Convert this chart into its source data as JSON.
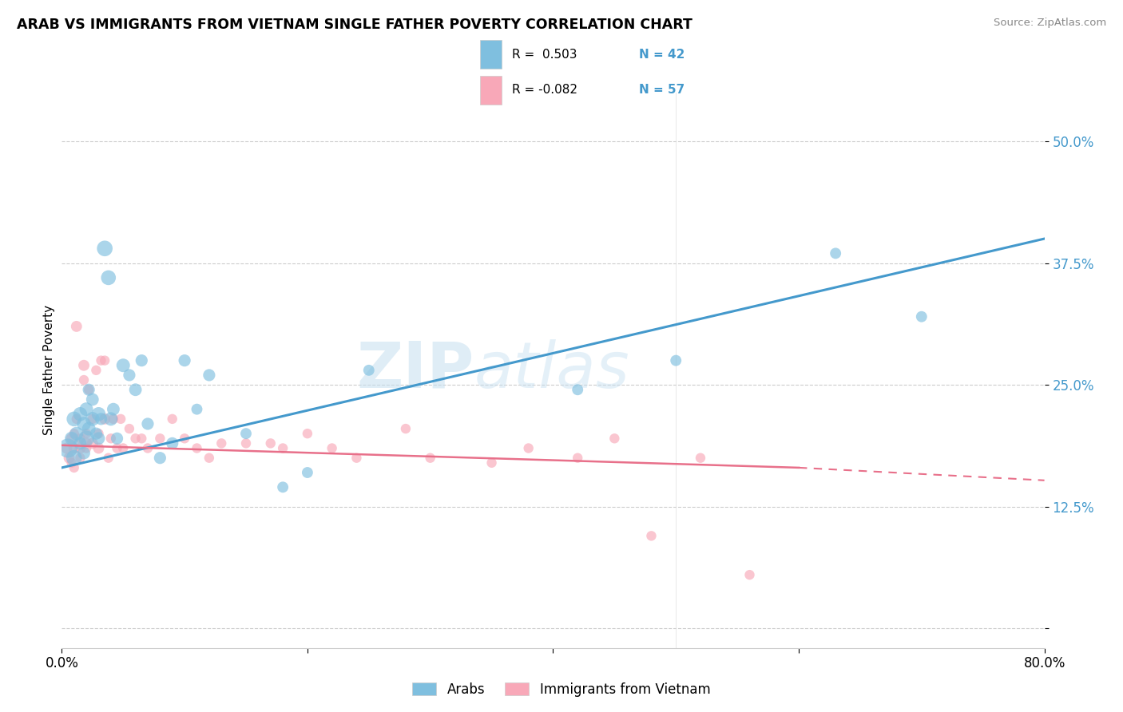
{
  "title": "ARAB VS IMMIGRANTS FROM VIETNAM SINGLE FATHER POVERTY CORRELATION CHART",
  "source": "Source: ZipAtlas.com",
  "ylabel": "Single Father Poverty",
  "yticks": [
    0.0,
    0.125,
    0.25,
    0.375,
    0.5
  ],
  "ytick_labels": [
    "",
    "12.5%",
    "25.0%",
    "37.5%",
    "50.0%"
  ],
  "xlim": [
    0.0,
    0.8
  ],
  "ylim": [
    -0.02,
    0.55
  ],
  "blue_color": "#7fbfdf",
  "pink_color": "#f8a8b8",
  "blue_line_color": "#4499cc",
  "pink_line_color": "#e8708a",
  "blue_fill": "#aacce8",
  "pink_fill": "#f4b8c8",
  "watermark_zip": "ZIP",
  "watermark_atlas": "atlas",
  "arab_x": [
    0.005,
    0.008,
    0.01,
    0.01,
    0.012,
    0.015,
    0.015,
    0.018,
    0.018,
    0.02,
    0.02,
    0.022,
    0.022,
    0.025,
    0.025,
    0.028,
    0.03,
    0.03,
    0.032,
    0.035,
    0.038,
    0.04,
    0.042,
    0.045,
    0.05,
    0.055,
    0.06,
    0.065,
    0.07,
    0.08,
    0.09,
    0.1,
    0.11,
    0.12,
    0.15,
    0.18,
    0.2,
    0.25,
    0.42,
    0.5,
    0.63,
    0.7
  ],
  "arab_y": [
    0.185,
    0.195,
    0.175,
    0.215,
    0.2,
    0.22,
    0.19,
    0.21,
    0.18,
    0.195,
    0.225,
    0.205,
    0.245,
    0.215,
    0.235,
    0.2,
    0.22,
    0.195,
    0.215,
    0.39,
    0.36,
    0.215,
    0.225,
    0.195,
    0.27,
    0.26,
    0.245,
    0.275,
    0.21,
    0.175,
    0.19,
    0.275,
    0.225,
    0.26,
    0.2,
    0.145,
    0.16,
    0.265,
    0.245,
    0.275,
    0.385,
    0.32
  ],
  "arab_sizes": [
    300,
    150,
    200,
    180,
    150,
    160,
    130,
    160,
    130,
    200,
    150,
    150,
    120,
    160,
    130,
    120,
    160,
    130,
    120,
    200,
    180,
    150,
    130,
    120,
    150,
    120,
    130,
    120,
    120,
    120,
    120,
    120,
    100,
    120,
    100,
    100,
    100,
    100,
    100,
    100,
    100,
    100
  ],
  "viet_x": [
    0.004,
    0.006,
    0.008,
    0.008,
    0.01,
    0.01,
    0.01,
    0.012,
    0.012,
    0.015,
    0.015,
    0.015,
    0.018,
    0.018,
    0.02,
    0.02,
    0.02,
    0.022,
    0.025,
    0.025,
    0.028,
    0.03,
    0.03,
    0.032,
    0.035,
    0.035,
    0.038,
    0.04,
    0.042,
    0.045,
    0.048,
    0.05,
    0.055,
    0.06,
    0.065,
    0.07,
    0.08,
    0.09,
    0.1,
    0.11,
    0.12,
    0.13,
    0.15,
    0.17,
    0.18,
    0.2,
    0.22,
    0.24,
    0.28,
    0.3,
    0.35,
    0.38,
    0.42,
    0.45,
    0.48,
    0.52,
    0.56
  ],
  "viet_y": [
    0.185,
    0.175,
    0.195,
    0.17,
    0.185,
    0.165,
    0.2,
    0.31,
    0.215,
    0.185,
    0.195,
    0.175,
    0.27,
    0.255,
    0.19,
    0.2,
    0.185,
    0.245,
    0.19,
    0.215,
    0.265,
    0.185,
    0.2,
    0.275,
    0.215,
    0.275,
    0.175,
    0.195,
    0.215,
    0.185,
    0.215,
    0.185,
    0.205,
    0.195,
    0.195,
    0.185,
    0.195,
    0.215,
    0.195,
    0.185,
    0.175,
    0.19,
    0.19,
    0.19,
    0.185,
    0.2,
    0.185,
    0.175,
    0.205,
    0.175,
    0.17,
    0.185,
    0.175,
    0.195,
    0.095,
    0.175,
    0.055
  ],
  "viet_sizes": [
    100,
    100,
    100,
    80,
    100,
    80,
    80,
    100,
    80,
    100,
    80,
    80,
    100,
    80,
    100,
    80,
    80,
    80,
    100,
    80,
    80,
    100,
    80,
    80,
    100,
    80,
    80,
    80,
    80,
    80,
    80,
    80,
    80,
    80,
    80,
    80,
    80,
    80,
    80,
    80,
    80,
    80,
    80,
    80,
    80,
    80,
    80,
    80,
    80,
    80,
    80,
    80,
    80,
    80,
    80,
    80,
    80
  ],
  "blue_trend_x0": 0.0,
  "blue_trend_y0": 0.165,
  "blue_trend_x1": 0.8,
  "blue_trend_y1": 0.4,
  "pink_trend_x0": 0.0,
  "pink_trend_y0": 0.188,
  "pink_trend_x1_solid": 0.6,
  "pink_trend_y1_solid": 0.165,
  "pink_trend_x1_dash": 0.8,
  "pink_trend_y1_dash": 0.152
}
